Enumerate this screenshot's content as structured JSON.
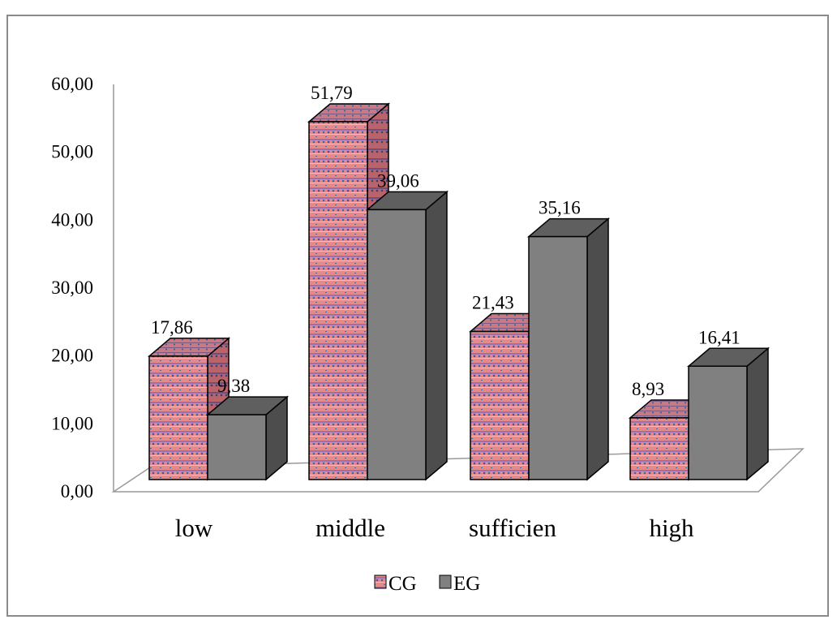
{
  "chart_data": {
    "type": "bar",
    "categories": [
      "low",
      "middle",
      "sufficien",
      "high"
    ],
    "series": [
      {
        "name": "CG",
        "values": [
          17.86,
          51.79,
          21.43,
          8.93
        ],
        "labels": [
          "17,86",
          "51,79",
          "21,43",
          "8,93"
        ]
      },
      {
        "name": "EG",
        "values": [
          9.38,
          39.06,
          35.16,
          16.41
        ],
        "labels": [
          "9,38",
          "39,06",
          "35,16",
          "16,41"
        ]
      }
    ],
    "y_ticks": [
      "0,00",
      "10,00",
      "20,00",
      "30,00",
      "40,00",
      "50,00",
      "60,00"
    ],
    "ylim": [
      0,
      60
    ],
    "style": "3d-clustered-column",
    "legend_position": "bottom",
    "colors": {
      "CG": "#e58a8a",
      "EG": "#808080"
    }
  }
}
